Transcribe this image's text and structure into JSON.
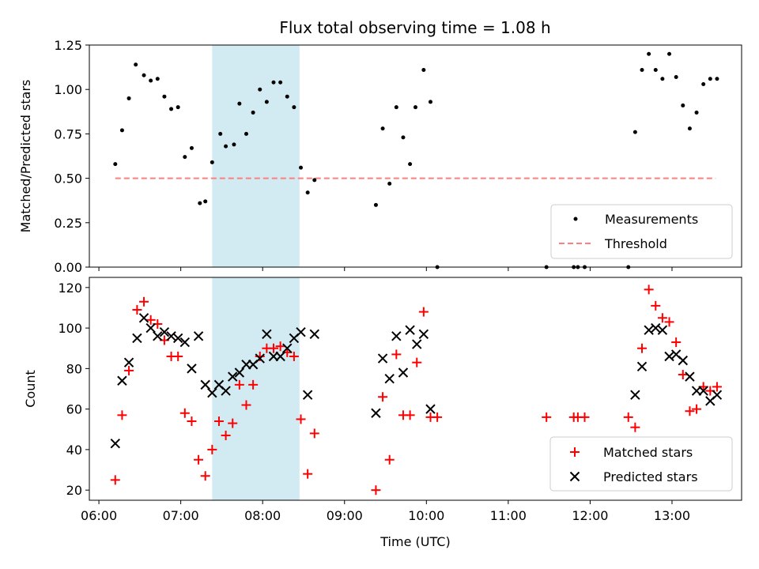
{
  "title": "Flux total observing time = 1.08 h",
  "colors": {
    "measurement": "#000000",
    "threshold": "#ff7f7f",
    "matched": "#ff0000",
    "predicted": "#000000",
    "highlight": "#add8e6"
  },
  "x_ticks": [
    "06:00",
    "07:00",
    "08:00",
    "09:00",
    "10:00",
    "11:00",
    "12:00",
    "13:00"
  ],
  "chart_data": [
    {
      "type": "scatter",
      "ylabel": "Matched/Predicted stars",
      "xlabel": "",
      "xlim": [
        "05:53",
        "13:51"
      ],
      "ylim": [
        0,
        1.25
      ],
      "y_ticks": [
        "0.00",
        "0.25",
        "0.50",
        "0.75",
        "1.00",
        "1.25"
      ],
      "highlight_span": [
        "07:23",
        "08:27"
      ],
      "legend_position": "lower-right",
      "legend": [
        {
          "label": "Measurements",
          "marker": "dot"
        },
        {
          "label": "Threshold",
          "marker": "dashed-line"
        }
      ],
      "threshold": {
        "value": 0.5,
        "x": [
          "06:12",
          "13:32"
        ]
      },
      "series": [
        {
          "name": "Measurements",
          "points": [
            [
              "06:12",
              0.58
            ],
            [
              "06:17",
              0.77
            ],
            [
              "06:22",
              0.95
            ],
            [
              "06:27",
              1.14
            ],
            [
              "06:33",
              1.08
            ],
            [
              "06:38",
              1.05
            ],
            [
              "06:43",
              1.06
            ],
            [
              "06:48",
              0.96
            ],
            [
              "06:53",
              0.89
            ],
            [
              "06:58",
              0.9
            ],
            [
              "07:03",
              0.62
            ],
            [
              "07:08",
              0.67
            ],
            [
              "07:14",
              0.36
            ],
            [
              "07:18",
              0.37
            ],
            [
              "07:23",
              0.59
            ],
            [
              "07:29",
              0.75
            ],
            [
              "07:33",
              0.68
            ],
            [
              "07:39",
              0.69
            ],
            [
              "07:43",
              0.92
            ],
            [
              "07:48",
              0.75
            ],
            [
              "07:53",
              0.87
            ],
            [
              "07:58",
              1.0
            ],
            [
              "08:03",
              0.93
            ],
            [
              "08:08",
              1.04
            ],
            [
              "08:13",
              1.04
            ],
            [
              "08:18",
              0.96
            ],
            [
              "08:23",
              0.9
            ],
            [
              "08:28",
              0.56
            ],
            [
              "08:33",
              0.42
            ],
            [
              "08:38",
              0.49
            ],
            [
              "09:23",
              0.35
            ],
            [
              "09:28",
              0.78
            ],
            [
              "09:33",
              0.47
            ],
            [
              "09:38",
              0.9
            ],
            [
              "09:43",
              0.73
            ],
            [
              "09:48",
              0.58
            ],
            [
              "09:52",
              0.9
            ],
            [
              "09:58",
              1.11
            ],
            [
              "10:03",
              0.93
            ],
            [
              "10:08",
              0.0
            ],
            [
              "11:28",
              0.0
            ],
            [
              "11:48",
              0.0
            ],
            [
              "11:51",
              0.0
            ],
            [
              "11:56",
              0.0
            ],
            [
              "12:28",
              0.0
            ],
            [
              "12:33",
              0.76
            ],
            [
              "12:38",
              1.11
            ],
            [
              "12:43",
              1.2
            ],
            [
              "12:48",
              1.11
            ],
            [
              "12:53",
              1.06
            ],
            [
              "12:58",
              1.2
            ],
            [
              "13:03",
              1.07
            ],
            [
              "13:08",
              0.91
            ],
            [
              "13:13",
              0.78
            ],
            [
              "13:18",
              0.87
            ],
            [
              "13:23",
              1.03
            ],
            [
              "13:28",
              1.06
            ],
            [
              "13:33",
              1.06
            ]
          ]
        }
      ]
    },
    {
      "type": "scatter",
      "ylabel": "Count",
      "xlabel": "Time (UTC)",
      "xlim": [
        "05:53",
        "13:51"
      ],
      "ylim": [
        15,
        125
      ],
      "y_ticks": [
        "20",
        "40",
        "60",
        "80",
        "100",
        "120"
      ],
      "highlight_span": [
        "07:23",
        "08:27"
      ],
      "legend_position": "lower-right",
      "legend": [
        {
          "label": "Matched stars",
          "marker": "plus"
        },
        {
          "label": "Predicted stars",
          "marker": "x"
        }
      ],
      "series": [
        {
          "name": "Matched stars",
          "points": [
            [
              "06:12",
              25
            ],
            [
              "06:17",
              57
            ],
            [
              "06:22",
              79
            ],
            [
              "06:28",
              109
            ],
            [
              "06:33",
              113
            ],
            [
              "06:38",
              104
            ],
            [
              "06:43",
              102
            ],
            [
              "06:48",
              94
            ],
            [
              "06:53",
              86
            ],
            [
              "06:58",
              86
            ],
            [
              "07:03",
              58
            ],
            [
              "07:08",
              54
            ],
            [
              "07:13",
              35
            ],
            [
              "07:18",
              27
            ],
            [
              "07:23",
              40
            ],
            [
              "07:28",
              54
            ],
            [
              "07:33",
              47
            ],
            [
              "07:38",
              53
            ],
            [
              "07:43",
              72
            ],
            [
              "07:48",
              62
            ],
            [
              "07:53",
              72
            ],
            [
              "07:58",
              86
            ],
            [
              "08:03",
              90
            ],
            [
              "08:08",
              90
            ],
            [
              "08:13",
              91
            ],
            [
              "08:18",
              88
            ],
            [
              "08:23",
              86
            ],
            [
              "08:28",
              55
            ],
            [
              "08:33",
              28
            ],
            [
              "08:38",
              48
            ],
            [
              "09:23",
              20
            ],
            [
              "09:28",
              66
            ],
            [
              "09:33",
              35
            ],
            [
              "09:38",
              87
            ],
            [
              "09:43",
              57
            ],
            [
              "09:48",
              57
            ],
            [
              "09:53",
              83
            ],
            [
              "09:58",
              108
            ],
            [
              "10:03",
              56
            ],
            [
              "10:08",
              56
            ],
            [
              "11:28",
              56
            ],
            [
              "11:48",
              56
            ],
            [
              "11:51",
              56
            ],
            [
              "11:56",
              56
            ],
            [
              "12:28",
              56
            ],
            [
              "12:33",
              51
            ],
            [
              "12:38",
              90
            ],
            [
              "12:43",
              119
            ],
            [
              "12:48",
              111
            ],
            [
              "12:53",
              105
            ],
            [
              "12:58",
              103
            ],
            [
              "13:03",
              93
            ],
            [
              "13:08",
              77
            ],
            [
              "13:13",
              59
            ],
            [
              "13:18",
              60
            ],
            [
              "13:23",
              71
            ],
            [
              "13:28",
              69
            ],
            [
              "13:33",
              71
            ]
          ]
        },
        {
          "name": "Predicted stars",
          "points": [
            [
              "06:12",
              43
            ],
            [
              "06:17",
              74
            ],
            [
              "06:22",
              83
            ],
            [
              "06:28",
              95
            ],
            [
              "06:33",
              105
            ],
            [
              "06:38",
              100
            ],
            [
              "06:43",
              96
            ],
            [
              "06:48",
              98
            ],
            [
              "06:53",
              96
            ],
            [
              "06:58",
              95
            ],
            [
              "07:03",
              93
            ],
            [
              "07:08",
              80
            ],
            [
              "07:13",
              96
            ],
            [
              "07:18",
              72
            ],
            [
              "07:23",
              68
            ],
            [
              "07:28",
              72
            ],
            [
              "07:33",
              69
            ],
            [
              "07:38",
              76
            ],
            [
              "07:43",
              78
            ],
            [
              "07:48",
              82
            ],
            [
              "07:53",
              82
            ],
            [
              "07:58",
              85
            ],
            [
              "08:03",
              97
            ],
            [
              "08:08",
              86
            ],
            [
              "08:13",
              86
            ],
            [
              "08:18",
              90
            ],
            [
              "08:23",
              95
            ],
            [
              "08:28",
              98
            ],
            [
              "08:33",
              67
            ],
            [
              "08:38",
              97
            ],
            [
              "09:23",
              58
            ],
            [
              "09:28",
              85
            ],
            [
              "09:33",
              75
            ],
            [
              "09:38",
              96
            ],
            [
              "09:43",
              78
            ],
            [
              "09:48",
              99
            ],
            [
              "09:53",
              92
            ],
            [
              "09:58",
              97
            ],
            [
              "10:03",
              60
            ],
            [
              "12:33",
              67
            ],
            [
              "12:38",
              81
            ],
            [
              "12:43",
              99
            ],
            [
              "12:48",
              100
            ],
            [
              "12:53",
              99
            ],
            [
              "12:58",
              86
            ],
            [
              "13:03",
              87
            ],
            [
              "13:08",
              84
            ],
            [
              "13:13",
              76
            ],
            [
              "13:18",
              69
            ],
            [
              "13:23",
              69
            ],
            [
              "13:28",
              64
            ],
            [
              "13:33",
              67
            ]
          ]
        }
      ]
    }
  ]
}
